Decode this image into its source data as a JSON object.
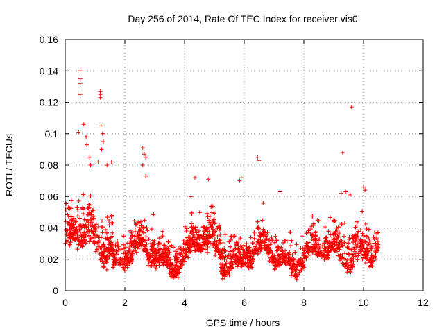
{
  "chart_data": {
    "type": "scatter",
    "title": "Day 256 of 2014, Rate Of TEC Index for receiver vis0",
    "xlabel": "GPS time / hours",
    "ylabel": "ROTI / TECUs",
    "xlim": [
      0,
      12
    ],
    "ylim": [
      0,
      0.16
    ],
    "xticks": [
      "0",
      "2",
      "4",
      "6",
      "8",
      "10",
      "12"
    ],
    "yticks": [
      "0",
      "0.02",
      "0.04",
      "0.06",
      "0.08",
      "0.1",
      "0.12",
      "0.14",
      "0.16"
    ],
    "grid": true,
    "marker": "+",
    "series": [
      {
        "name": "ROTI",
        "color": "#ff0000",
        "data_range": [
          0.0,
          10.5
        ],
        "outliers": [
          [
            0.5,
            0.14
          ],
          [
            0.5,
            0.135
          ],
          [
            0.5,
            0.132
          ],
          [
            0.5,
            0.125
          ],
          [
            1.18,
            0.127
          ],
          [
            1.18,
            0.125
          ],
          [
            1.18,
            0.123
          ],
          [
            0.45,
            0.101
          ],
          [
            0.62,
            0.106
          ],
          [
            0.7,
            0.098
          ],
          [
            0.72,
            0.093
          ],
          [
            1.2,
            0.105
          ],
          [
            1.25,
            0.1
          ],
          [
            1.28,
            0.095
          ],
          [
            1.22,
            0.09
          ],
          [
            0.8,
            0.085
          ],
          [
            0.85,
            0.08
          ],
          [
            1.1,
            0.082
          ],
          [
            1.4,
            0.08
          ],
          [
            1.55,
            0.082
          ],
          [
            2.6,
            0.091
          ],
          [
            2.65,
            0.087
          ],
          [
            2.7,
            0.085
          ],
          [
            2.6,
            0.08
          ],
          [
            2.7,
            0.073
          ],
          [
            4.35,
            0.072
          ],
          [
            4.8,
            0.071
          ],
          [
            5.85,
            0.07
          ],
          [
            5.9,
            0.072
          ],
          [
            6.45,
            0.085
          ],
          [
            6.5,
            0.083
          ],
          [
            7.2,
            0.063
          ],
          [
            9.3,
            0.088
          ],
          [
            9.6,
            0.117
          ],
          [
            9.25,
            0.062
          ],
          [
            9.4,
            0.063
          ],
          [
            9.55,
            0.061
          ],
          [
            10.0,
            0.066
          ],
          [
            10.05,
            0.064
          ]
        ]
      }
    ]
  }
}
